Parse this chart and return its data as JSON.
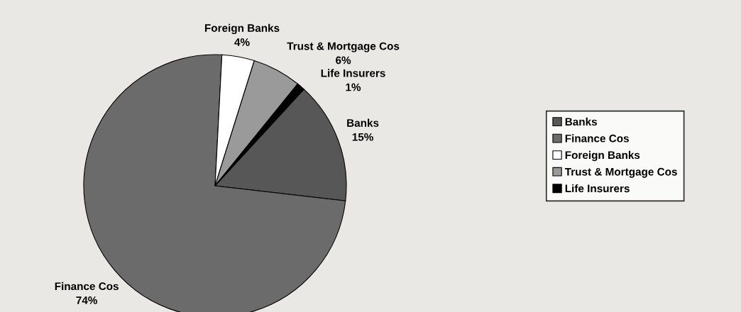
{
  "chart_data": {
    "type": "pie",
    "categories": [
      "Banks",
      "Finance Cos",
      "Foreign Banks",
      "Trust & Mortgage Cos",
      "Life Insurers"
    ],
    "values": [
      15,
      74,
      4,
      6,
      1
    ],
    "value_labels": [
      "15%",
      "74%",
      "4%",
      "6%",
      "1%"
    ],
    "colors": [
      "#575757",
      "#6b6b6b",
      "#ffffff",
      "#9a9a9a",
      "#000000"
    ],
    "legend": "right"
  }
}
